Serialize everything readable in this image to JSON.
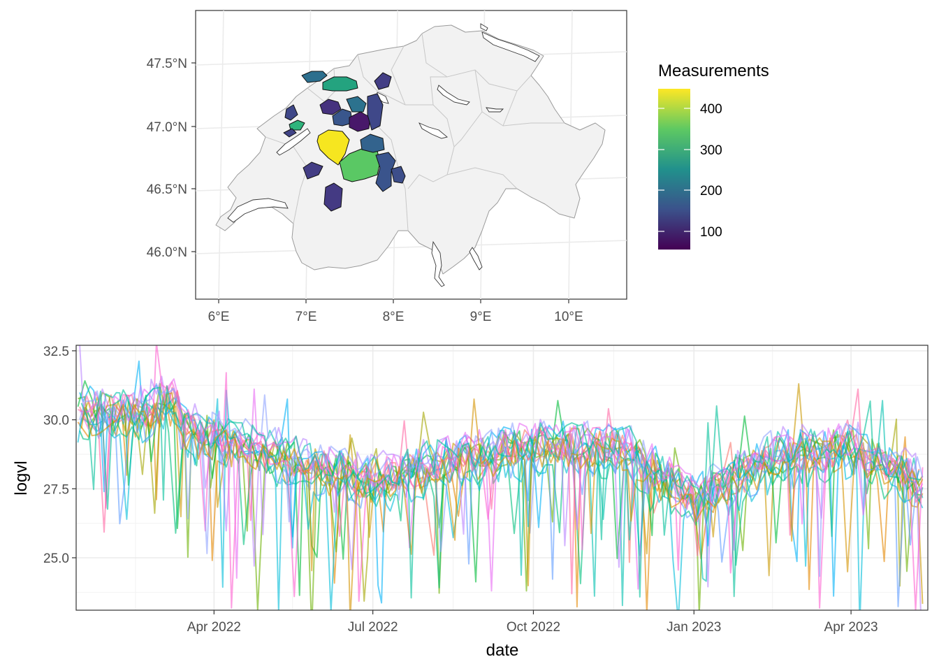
{
  "chart_data": [
    {
      "type": "map",
      "xaxis_ticks": [
        "6°E",
        "7°E",
        "8°E",
        "9°E",
        "10°E"
      ],
      "yaxis_ticks": [
        "47.5°N",
        "47.0°N",
        "46.5°N",
        "46.0°N"
      ],
      "legend": {
        "title": "Measurements",
        "placement": "right",
        "ticks": [
          "400",
          "300",
          "200",
          "100"
        ],
        "colors": [
          "#440154",
          "#3b528b",
          "#21918c",
          "#5ec962",
          "#fde725"
        ]
      },
      "regions": [
        {
          "value": 160,
          "color": "#2d6f8e"
        },
        {
          "value": 280,
          "color": "#24a37f"
        },
        {
          "value": 80,
          "color": "#433e85"
        },
        {
          "value": 90,
          "color": "#3f4788"
        },
        {
          "value": 300,
          "color": "#2fb47c"
        },
        {
          "value": 70,
          "color": "#414487"
        },
        {
          "value": 60,
          "color": "#46327e"
        },
        {
          "value": 100,
          "color": "#39568c"
        },
        {
          "value": 170,
          "color": "#2c728e"
        },
        {
          "value": 20,
          "color": "#48186a"
        },
        {
          "value": 90,
          "color": "#3f4889"
        },
        {
          "value": 450,
          "color": "#f6e620"
        },
        {
          "value": 330,
          "color": "#5ac864"
        },
        {
          "value": 100,
          "color": "#3a548c"
        },
        {
          "value": 80,
          "color": "#433d84"
        },
        {
          "value": 70,
          "color": "#443a83"
        },
        {
          "value": 130,
          "color": "#33638d"
        },
        {
          "value": 90,
          "color": "#3d4e8a"
        }
      ]
    },
    {
      "type": "line",
      "xlabel": "date",
      "ylabel": "logvl",
      "x_range": [
        "2022-01-12",
        "2023-05-15"
      ],
      "ylim": [
        23.1,
        32.7
      ],
      "x_ticks": [
        "Apr 2022",
        "Jul 2022",
        "Oct 2022",
        "Jan 2023",
        "Apr 2023"
      ],
      "y_ticks": [
        "25.0",
        "27.5",
        "30.0",
        "32.5"
      ],
      "grid": true,
      "series_colors": [
        "#F8766D",
        "#E58700",
        "#C99800",
        "#A3A500",
        "#6BB100",
        "#00BA38",
        "#00BF7D",
        "#00C0AF",
        "#00BCD8",
        "#00B0F6",
        "#619CFF",
        "#B983FF",
        "#E76BF3",
        "#FD61D1",
        "#FF67A4",
        "#8FA4FF",
        "#D39200",
        "#00BF9A"
      ],
      "series_count": 18
    }
  ]
}
